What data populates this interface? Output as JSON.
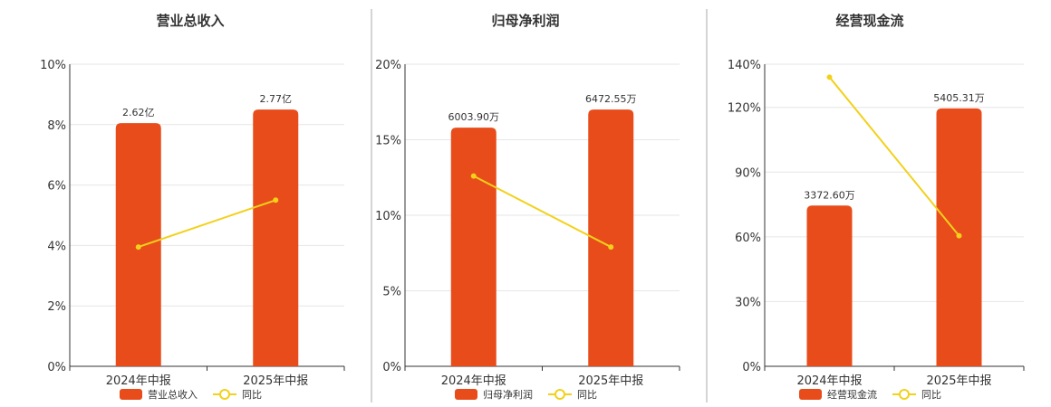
{
  "chart_data": [
    {
      "type": "bar+line",
      "title": "营业总收入",
      "categories": [
        "2024年中报",
        "2025年中报"
      ],
      "ylim": [
        0,
        10
      ],
      "yticks": [
        "0%",
        "2%",
        "4%",
        "6%",
        "8%",
        "10%"
      ],
      "series": [
        {
          "name": "营业总收入",
          "kind": "bar",
          "values": [
            8.05,
            8.5
          ],
          "labels": [
            "2.62亿",
            "2.77亿"
          ]
        },
        {
          "name": "同比",
          "kind": "line",
          "values": [
            3.95,
            5.5
          ]
        }
      ],
      "grid": true,
      "legend": "bottom-center"
    },
    {
      "type": "bar+line",
      "title": "归母净利润",
      "categories": [
        "2024年中报",
        "2025年中报"
      ],
      "ylim": [
        0,
        20
      ],
      "yticks": [
        "0%",
        "5%",
        "10%",
        "15%",
        "20%"
      ],
      "series": [
        {
          "name": "归母净利润",
          "kind": "bar",
          "values": [
            15.8,
            17.0
          ],
          "labels": [
            "6003.90万",
            "6472.55万"
          ]
        },
        {
          "name": "同比",
          "kind": "line",
          "values": [
            12.6,
            7.9
          ]
        }
      ],
      "grid": true,
      "legend": "bottom-center"
    },
    {
      "type": "bar+line",
      "title": "经营现金流",
      "categories": [
        "2024年中报",
        "2025年中报"
      ],
      "ylim": [
        0,
        140
      ],
      "yticks": [
        "0%",
        "30%",
        "60%",
        "90%",
        "120%",
        "140%"
      ],
      "series": [
        {
          "name": "经营现金流",
          "kind": "bar",
          "values": [
            74.5,
            119.5
          ],
          "labels": [
            "3372.60万",
            "5405.31万"
          ]
        },
        {
          "name": "同比",
          "kind": "line",
          "values": [
            134,
            60.5
          ]
        }
      ],
      "grid": true,
      "legend": "bottom-center"
    }
  ],
  "colors": {
    "bar": "#e84c1b",
    "line": "#f2d11b",
    "grid": "#e6e6e6",
    "axis": "#333333",
    "divider": "#aaaaaa"
  }
}
